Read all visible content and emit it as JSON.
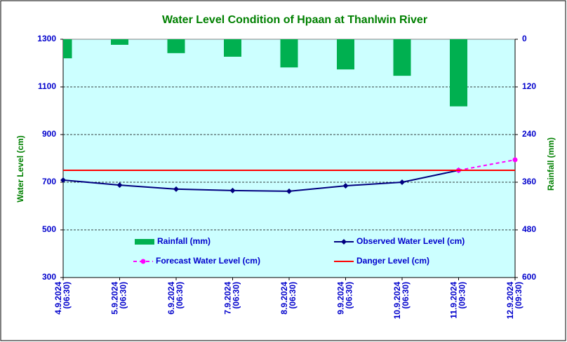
{
  "chart_data": {
    "type": "combo",
    "title": "Water Level Condition of Hpaan at Thanlwin River",
    "y_label": "Water Level (cm)",
    "y2_label": "Rainfall (mm)",
    "categories": [
      "4.9.2024 (06:30)",
      "5.9.2024 (06:30)",
      "6.9.2024 (06:30)",
      "7.9.2024 (06:30)",
      "8.9.2024 (06:30)",
      "9.9.2024 (06:30)",
      "10.9.2024 (06:30)",
      "11.9.2024 (09:30)",
      "12.9.2024 (09:30)"
    ],
    "ylim": [
      300,
      1300
    ],
    "yticks": [
      300,
      500,
      700,
      900,
      1100,
      1300
    ],
    "y2lim": [
      600,
      0
    ],
    "y2ticks": [
      0,
      120,
      240,
      360,
      480,
      600
    ],
    "grid": true,
    "series": [
      {
        "name": "Rainfall (mm)",
        "type": "bar",
        "axis": "y2",
        "color": "#00b050",
        "values": [
          48,
          14,
          35,
          44,
          71,
          76,
          92,
          169,
          null
        ]
      },
      {
        "name": "Observed Water Level (cm)",
        "type": "line",
        "color": "#000080",
        "marker": "diamond",
        "values": [
          709,
          688,
          671,
          665,
          662,
          685,
          700,
          750,
          null
        ]
      },
      {
        "name": "Forecast Water Level (cm)",
        "type": "line",
        "color": "#ff00ff",
        "marker": "circle",
        "dashed": true,
        "values": [
          null,
          null,
          null,
          null,
          null,
          null,
          null,
          750,
          794
        ]
      },
      {
        "name": "Danger Level (cm)",
        "type": "line",
        "color": "#ff0000",
        "values": [
          750,
          750,
          750,
          750,
          750,
          750,
          750,
          750,
          750
        ]
      }
    ]
  }
}
